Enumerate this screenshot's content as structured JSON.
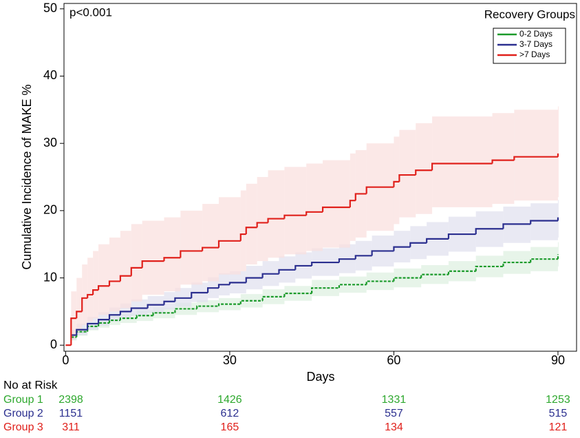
{
  "chart_data": {
    "type": "step",
    "annotation": "p<0.001",
    "x_label": "Days",
    "y_label": "Cumulative Incidence of MAKE %",
    "xlim": [
      -0.3,
      93.4
    ],
    "ylim": [
      -0.9,
      50.8
    ],
    "xticks": [
      0,
      30,
      60,
      90
    ],
    "yticks": [
      0,
      10,
      20,
      30,
      40,
      50
    ],
    "legend_title": "Recovery Groups",
    "legend": "top-right",
    "series": [
      {
        "name": "0-2 Days",
        "color": "#1a9a2a",
        "line_style": "dashed",
        "x": [
          1,
          2,
          4,
          6,
          8,
          10,
          13,
          16,
          20,
          24,
          28,
          32,
          36,
          40,
          45,
          50,
          55,
          60,
          65,
          70,
          75,
          80,
          85,
          90
        ],
        "values": [
          1.2,
          2,
          2.8,
          3.3,
          3.7,
          4,
          4.4,
          4.8,
          5.4,
          5.8,
          6.1,
          6.6,
          7.2,
          7.7,
          8.5,
          9,
          9.5,
          10,
          10.5,
          11,
          11.7,
          12.3,
          12.8,
          13.5
        ],
        "lower": [
          0.7,
          1.4,
          2.2,
          2.6,
          3,
          3.3,
          3.6,
          4,
          4.5,
          4.9,
          5.2,
          5.6,
          6.1,
          6.6,
          7.3,
          7.8,
          8.2,
          8.6,
          9.1,
          9.5,
          10.1,
          10.6,
          11,
          11.7
        ],
        "upper": [
          1.7,
          2.6,
          3.4,
          4,
          4.4,
          4.7,
          5.2,
          5.6,
          6.3,
          6.7,
          7,
          7.6,
          8.3,
          8.8,
          9.7,
          10.2,
          10.8,
          11.4,
          11.9,
          12.5,
          13.3,
          14,
          14.6,
          15.3
        ]
      },
      {
        "name": "3-7 Days",
        "color": "#2b2f8f",
        "line_style": "solid",
        "x": [
          1,
          2,
          4,
          6,
          8,
          10,
          12,
          15,
          18,
          20,
          23,
          26,
          28,
          30,
          33,
          36,
          39,
          42,
          45,
          50,
          53,
          56,
          60,
          63,
          66,
          70,
          75,
          80,
          85,
          90
        ],
        "values": [
          1.5,
          2.3,
          3.2,
          3.8,
          4.5,
          5,
          5.5,
          6,
          6.5,
          7,
          7.8,
          8.5,
          9,
          9.3,
          10,
          10.6,
          11.2,
          11.8,
          12.3,
          12.8,
          13.3,
          14,
          14.6,
          15.2,
          15.8,
          16.5,
          17.3,
          18,
          18.5,
          19
        ],
        "lower": [
          0.8,
          1.5,
          2.3,
          2.9,
          3.5,
          4,
          4.4,
          4.8,
          5.3,
          5.7,
          6.4,
          7,
          7.4,
          7.7,
          8.3,
          8.8,
          9.3,
          9.9,
          10.3,
          10.7,
          11.1,
          11.7,
          12.3,
          12.8,
          13.3,
          13.9,
          14.6,
          15.2,
          15.6,
          16
        ],
        "upper": [
          2.3,
          3.2,
          4.2,
          4.9,
          5.6,
          6.2,
          6.8,
          7.3,
          7.9,
          8.5,
          9.3,
          10.1,
          10.7,
          11,
          11.8,
          12.5,
          13.2,
          13.8,
          14.4,
          15,
          15.5,
          16.3,
          17,
          17.7,
          18.3,
          19.1,
          19.9,
          20.6,
          21.1,
          21.6
        ]
      },
      {
        "name": ">7 Days",
        "color": "#e0201b",
        "line_style": "solid",
        "x": [
          0,
          1,
          2,
          3,
          4,
          5,
          6,
          8,
          10,
          12,
          14,
          18,
          21,
          25,
          28,
          32,
          33,
          35,
          37,
          40,
          44,
          47,
          52,
          53,
          55,
          60,
          61,
          64,
          67,
          78,
          82,
          90
        ],
        "values": [
          0,
          4,
          5,
          7,
          7.5,
          8.2,
          8.8,
          9.5,
          10.3,
          11.5,
          12.5,
          13,
          14,
          14.5,
          15.5,
          16.5,
          17.5,
          18.2,
          18.8,
          19.3,
          19.8,
          20.5,
          21.5,
          22.5,
          23.5,
          24.3,
          25.3,
          26,
          27,
          27.5,
          28,
          28.5
        ],
        "lower": [
          0,
          1,
          2,
          3,
          3.5,
          4,
          4.5,
          5,
          5.5,
          6.5,
          7.5,
          8,
          9,
          9.5,
          10.5,
          11,
          12,
          12.5,
          13,
          13.5,
          14,
          14.5,
          15.5,
          16,
          17,
          18,
          19,
          19.5,
          20.5,
          21,
          21.5,
          22
        ],
        "upper": [
          0,
          8,
          10,
          12,
          13,
          14,
          15,
          16,
          17,
          18,
          18.5,
          19,
          20,
          21,
          22,
          23,
          24,
          25,
          26,
          26.5,
          27,
          27.5,
          28.5,
          29,
          30,
          31,
          32,
          33,
          34,
          34.5,
          35,
          35.5
        ]
      }
    ],
    "risk_table": {
      "title": "No at Risk",
      "rows": [
        {
          "label": "Group 1",
          "color": "#2ea82e",
          "values": [
            2398,
            1426,
            1331,
            1253
          ]
        },
        {
          "label": "Group 2",
          "color": "#2b2f8f",
          "values": [
            1151,
            612,
            557,
            515
          ]
        },
        {
          "label": "Group 3",
          "color": "#e0201b",
          "values": [
            311,
            165,
            134,
            121
          ]
        }
      ]
    }
  }
}
